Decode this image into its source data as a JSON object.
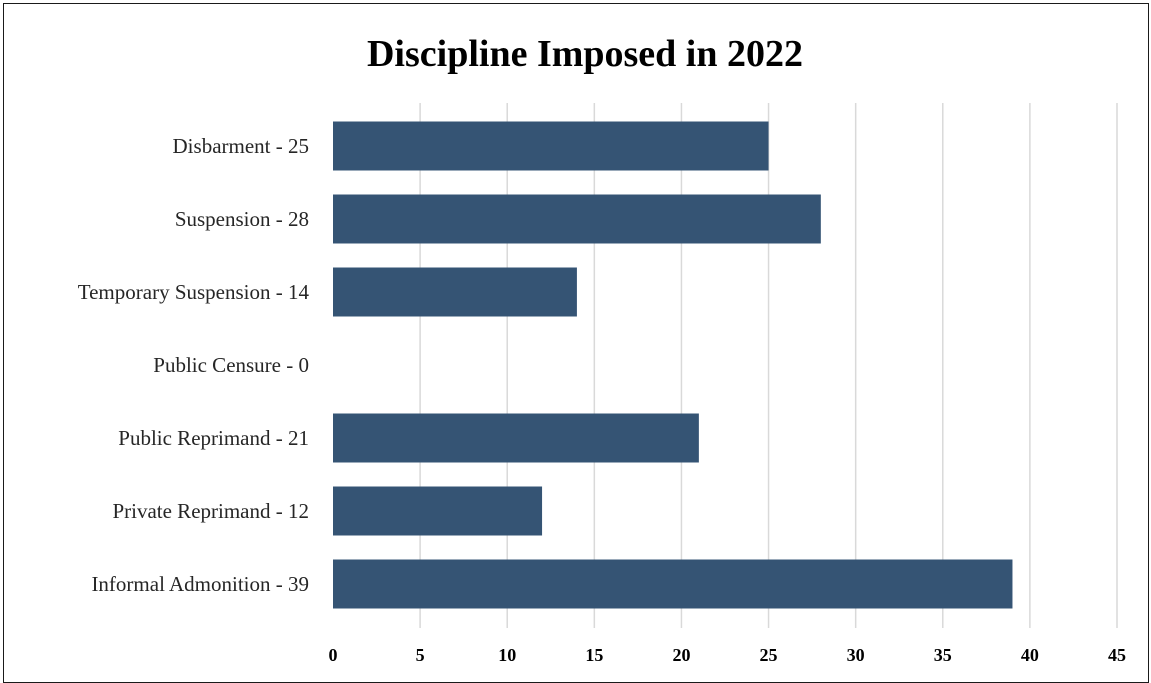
{
  "chart_data": {
    "type": "bar",
    "orientation": "horizontal",
    "title": "Discipline Imposed in 2022",
    "xlabel": "",
    "ylabel": "",
    "categories": [
      "Disbarment - 25",
      "Suspension - 28",
      "Temporary Suspension - 14",
      "Public Censure - 0",
      "Public Reprimand - 21",
      "Private Reprimand - 12",
      "Informal Admonition - 39"
    ],
    "values": [
      25,
      28,
      14,
      0,
      21,
      12,
      39
    ],
    "xlim": [
      0,
      45
    ],
    "x_ticks": [
      "0",
      "5",
      "10",
      "15",
      "20",
      "25",
      "30",
      "35",
      "40",
      "45"
    ],
    "grid": "vertical",
    "legend": "none",
    "bar_color": "#355474"
  }
}
